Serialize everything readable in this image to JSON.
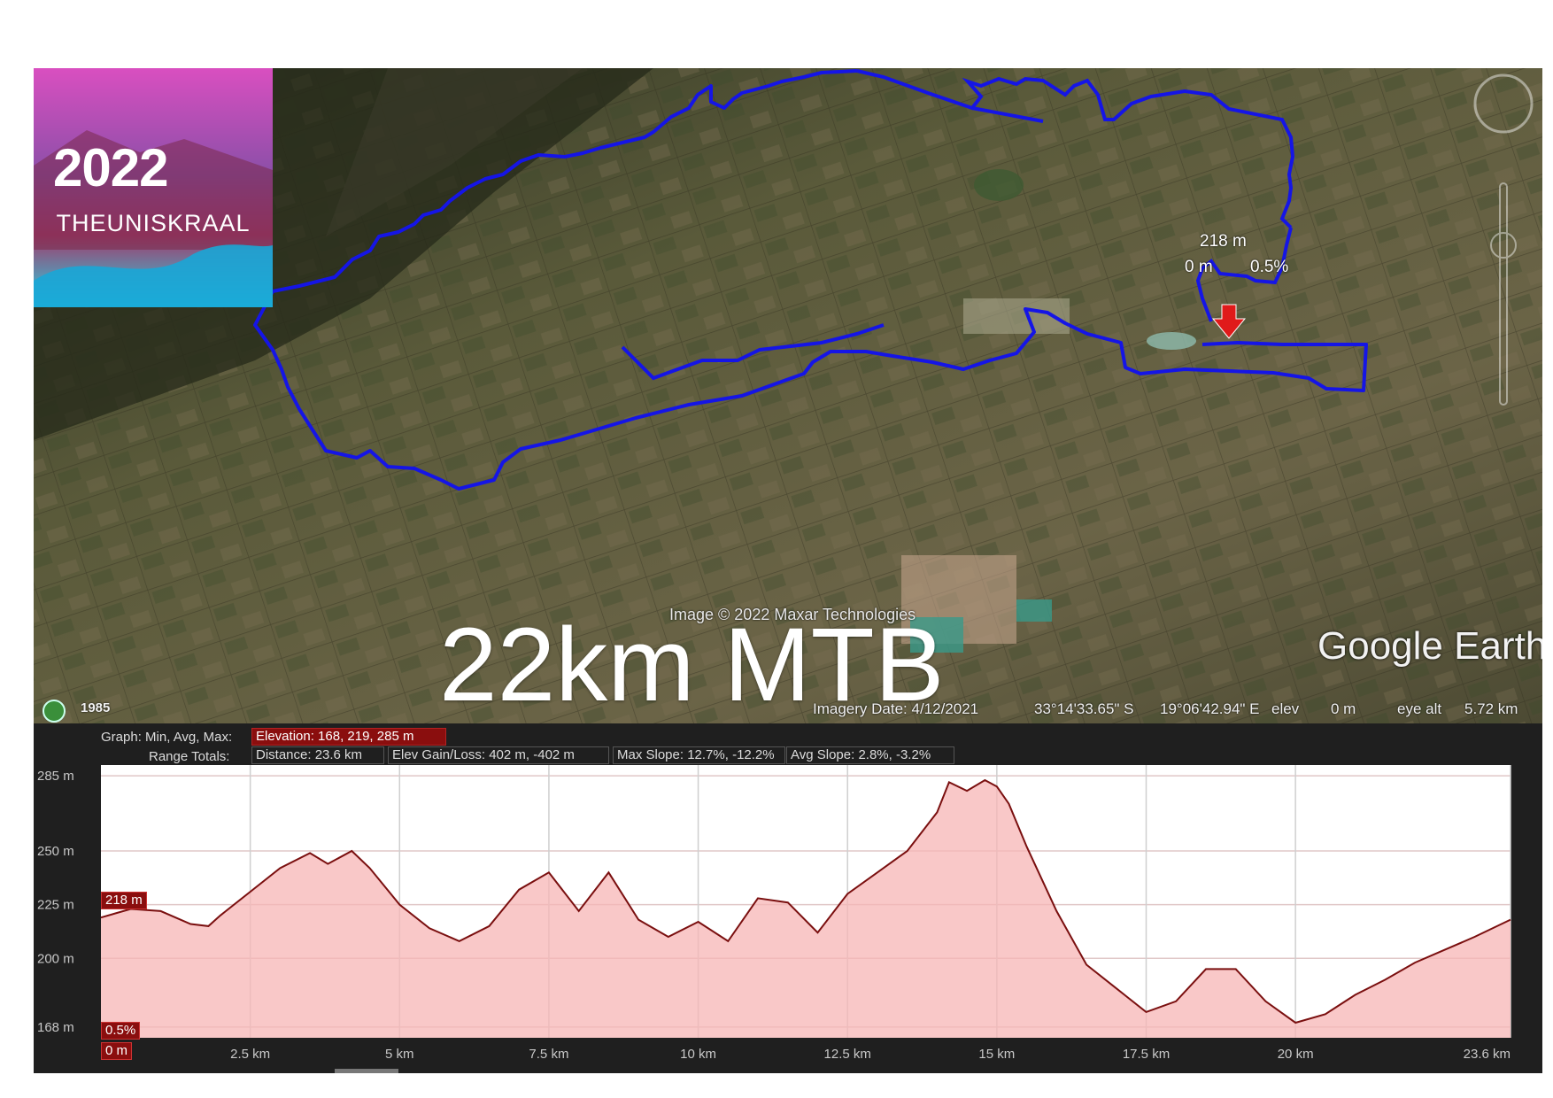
{
  "logo": {
    "year": "2022",
    "brand": "THEUNISKRAAL"
  },
  "map": {
    "credit": "Image © 2022 Maxar Technologies",
    "overlay_title": "22km MTB",
    "provider": "Google Earth",
    "marker": {
      "elevation": "218 m",
      "distance": "0 m",
      "slope": "0.5%"
    },
    "route_color": "#1515e6"
  },
  "statusbar": {
    "history_year": "1985",
    "imagery_date": "Imagery Date: 4/12/2021",
    "latitude": "33°14'33.65\" S",
    "longitude": "19°06'42.94\" E",
    "elev_label": "elev",
    "elev_value": "0 m",
    "eye_alt_label": "eye alt",
    "eye_alt_value": "5.72 km"
  },
  "profile": {
    "graph_label": "Graph: Min, Avg, Max:",
    "elevation": "Elevation: 168, 219, 285 m",
    "range_label": "Range Totals:",
    "distance": "Distance: 23.6 km",
    "elev_gain_loss": "Elev Gain/Loss: 402 m, -402 m",
    "max_slope": "Max Slope: 12.7%, -12.2%",
    "avg_slope": "Avg Slope: 2.8%, -3.2%",
    "cursor_elevation": "218 m",
    "cursor_slope": "0.5%",
    "cursor_distance": "0 m",
    "line_color": "#7a0f0f",
    "fill_color": "#f7b6b6"
  },
  "chart_data": {
    "type": "area",
    "xlabel": "",
    "ylabel": "",
    "xlim": [
      0,
      23.6
    ],
    "ylim": [
      163,
      290
    ],
    "y_ticks": [
      {
        "value": 285,
        "label": "285 m"
      },
      {
        "value": 250,
        "label": "250 m"
      },
      {
        "value": 225,
        "label": "225 m"
      },
      {
        "value": 200,
        "label": "200 m"
      },
      {
        "value": 168,
        "label": "168 m"
      }
    ],
    "x_ticks": [
      {
        "value": 2.5,
        "label": "2.5 km"
      },
      {
        "value": 5,
        "label": "5 km"
      },
      {
        "value": 7.5,
        "label": "7.5 km"
      },
      {
        "value": 10,
        "label": "10 km"
      },
      {
        "value": 12.5,
        "label": "12.5 km"
      },
      {
        "value": 15,
        "label": "15 km"
      },
      {
        "value": 17.5,
        "label": "17.5 km"
      },
      {
        "value": 20,
        "label": "20 km"
      },
      {
        "value": 23.6,
        "label": "23.6 km"
      }
    ],
    "grid": true,
    "series": [
      {
        "x": [
          0,
          0.5,
          1.0,
          1.5,
          1.8,
          2.0,
          2.5,
          3.0,
          3.5,
          3.8,
          4.2,
          4.5,
          5.0,
          5.5,
          6.0,
          6.5,
          7.0,
          7.5,
          8.0,
          8.5,
          9.0,
          9.5,
          10.0,
          10.5,
          11.0,
          11.5,
          12.0,
          12.5,
          13.0,
          13.5,
          14.0,
          14.2,
          14.5,
          14.8,
          15.0,
          15.2,
          15.5,
          16.0,
          16.5,
          17.0,
          17.5,
          18.0,
          18.5,
          19.0,
          19.5,
          20.0,
          20.5,
          21.0,
          21.5,
          22.0,
          22.5,
          23.0,
          23.6
        ],
        "y": [
          219,
          223,
          222,
          216,
          215,
          220,
          231,
          242,
          249,
          244,
          250,
          242,
          225,
          214,
          208,
          215,
          232,
          240,
          222,
          240,
          218,
          210,
          217,
          208,
          228,
          226,
          212,
          230,
          240,
          250,
          268,
          282,
          278,
          283,
          280,
          272,
          252,
          222,
          197,
          186,
          175,
          180,
          195,
          195,
          180,
          170,
          174,
          183,
          190,
          198,
          204,
          210,
          218
        ]
      }
    ]
  }
}
